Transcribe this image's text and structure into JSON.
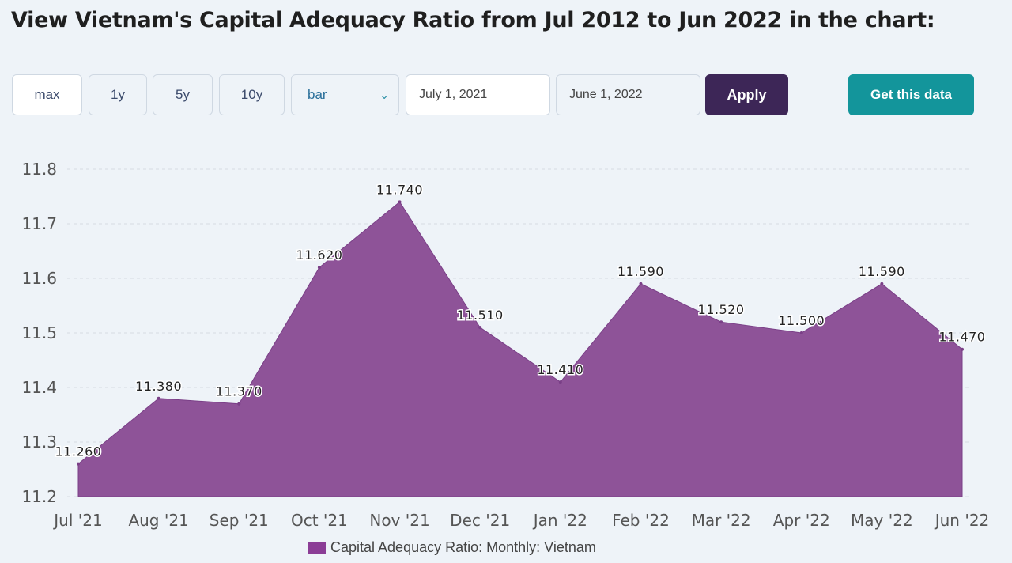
{
  "page_title": "View Vietnam's Capital Adequacy Ratio from Jul 2012 to Jun 2022 in the chart:",
  "controls": {
    "range_buttons": [
      "max",
      "1y",
      "5y",
      "10y"
    ],
    "chart_type_selected": "bar",
    "start_date": "July 1, 2021",
    "end_date": "June 1, 2022",
    "apply_label": "Apply",
    "get_data_label": "Get this data"
  },
  "colors": {
    "area_fill": "#8e5398",
    "apply_bg": "#3d2657",
    "get_data_bg": "#13959b",
    "legend_swatch": "#8b3d96"
  },
  "chart_data": {
    "type": "area",
    "categories": [
      "Jul '21",
      "Aug '21",
      "Sep '21",
      "Oct '21",
      "Nov '21",
      "Dec '21",
      "Jan '22",
      "Feb '22",
      "Mar '22",
      "Apr '22",
      "May '22",
      "Jun '22"
    ],
    "series": [
      {
        "name": "Capital Adequacy Ratio: Monthly: Vietnam",
        "values": [
          11.26,
          11.38,
          11.37,
          11.62,
          11.74,
          11.51,
          11.41,
          11.59,
          11.52,
          11.5,
          11.59,
          11.47
        ],
        "labels": [
          "11.260",
          "11.380",
          "11.370",
          "11.620",
          "11.740",
          "11.510",
          "11.410",
          "11.590",
          "11.520",
          "11.500",
          "11.590",
          "11.470"
        ]
      }
    ],
    "ylim": [
      11.2,
      11.8
    ],
    "yticks": [
      "11.2",
      "11.3",
      "11.4",
      "11.5",
      "11.6",
      "11.7",
      "11.8"
    ],
    "grid": true,
    "legend": "bottom-center"
  }
}
